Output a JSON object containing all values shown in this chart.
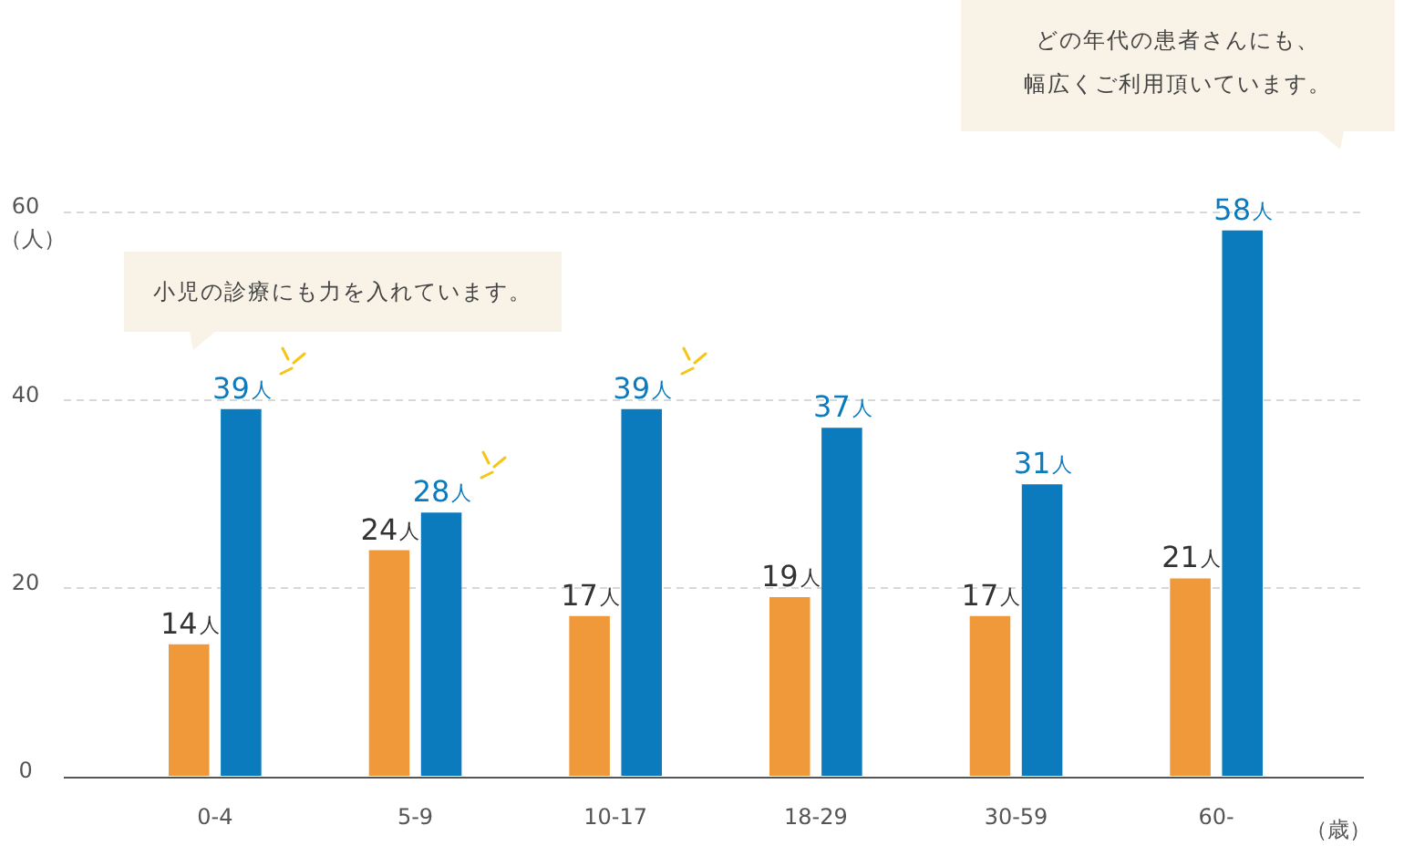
{
  "chart_data": {
    "type": "bar",
    "ylabel": "（人）",
    "xlabel": "（歳）",
    "categories": [
      "0-4",
      "5-9",
      "10-17",
      "18-29",
      "30-59",
      "60-"
    ],
    "series": [
      {
        "color": "#f0993a",
        "values": [
          14,
          24,
          17,
          19,
          17,
          21
        ],
        "value_labels": [
          "14人",
          "24人",
          "17人",
          "19人",
          "17人",
          "21人"
        ]
      },
      {
        "color": "#0b7bbd",
        "values": [
          39,
          28,
          39,
          37,
          31,
          58
        ],
        "value_labels": [
          "39人",
          "28人",
          "39人",
          "37人",
          "31人",
          "58人"
        ]
      }
    ],
    "ylim": [
      0,
      60
    ],
    "yticks": [
      0,
      20,
      40,
      60
    ],
    "grid": "y",
    "legend": false,
    "annotations": [
      "小児の診療にも力を入れています。",
      "どの年代の患者さんにも、幅広くご利用頂いています。"
    ]
  }
}
